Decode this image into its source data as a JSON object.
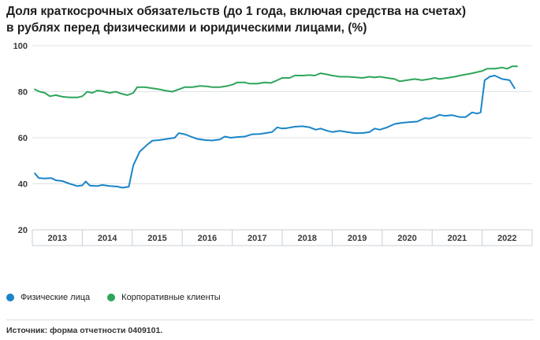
{
  "title_line1": "Доля краткосрочных обязательств (до 1 года, включая средства на счетах)",
  "title_line2": "в рублях перед физическими и юридическими лицами, (%)",
  "source": "Источник: форма отчетности 0409101.",
  "chart_data": {
    "type": "line",
    "title": "Доля краткосрочных обязательств (до 1 года, включая средства на счетах) в рублях перед физическими и юридическими лицами, (%)",
    "ylim": [
      20,
      100
    ],
    "yticks": [
      20,
      40,
      60,
      80,
      100
    ],
    "xlim": [
      2012.95,
      2022.95
    ],
    "years": [
      "2013",
      "2014",
      "2015",
      "2016",
      "2017",
      "2018",
      "2019",
      "2020",
      "2021",
      "2022"
    ],
    "grid": "horizontal",
    "legend_position": "bottom-left",
    "series": [
      {
        "name": "Физические лица",
        "color": "#1a85c8",
        "points": [
          [
            2013.0,
            44.5
          ],
          [
            2013.08,
            42.5
          ],
          [
            2013.2,
            42.3
          ],
          [
            2013.33,
            42.5
          ],
          [
            2013.42,
            41.5
          ],
          [
            2013.55,
            41.2
          ],
          [
            2013.7,
            40.0
          ],
          [
            2013.85,
            39.0
          ],
          [
            2013.95,
            39.3
          ],
          [
            2014.02,
            41.0
          ],
          [
            2014.1,
            39.2
          ],
          [
            2014.25,
            39.0
          ],
          [
            2014.35,
            39.5
          ],
          [
            2014.5,
            39.0
          ],
          [
            2014.65,
            38.8
          ],
          [
            2014.75,
            38.3
          ],
          [
            2014.88,
            38.7
          ],
          [
            2014.97,
            48.0
          ],
          [
            2015.1,
            54.0
          ],
          [
            2015.25,
            57.0
          ],
          [
            2015.35,
            58.7
          ],
          [
            2015.5,
            59.0
          ],
          [
            2015.65,
            59.5
          ],
          [
            2015.8,
            60.0
          ],
          [
            2015.88,
            62.0
          ],
          [
            2016.0,
            61.5
          ],
          [
            2016.12,
            60.5
          ],
          [
            2016.25,
            59.5
          ],
          [
            2016.4,
            59.0
          ],
          [
            2016.55,
            58.8
          ],
          [
            2016.7,
            59.2
          ],
          [
            2016.8,
            60.5
          ],
          [
            2016.92,
            60.0
          ],
          [
            2017.05,
            60.3
          ],
          [
            2017.2,
            60.5
          ],
          [
            2017.35,
            61.5
          ],
          [
            2017.5,
            61.6
          ],
          [
            2017.62,
            62.0
          ],
          [
            2017.75,
            62.5
          ],
          [
            2017.85,
            64.5
          ],
          [
            2017.95,
            64.0
          ],
          [
            2018.05,
            64.2
          ],
          [
            2018.2,
            64.8
          ],
          [
            2018.35,
            65.0
          ],
          [
            2018.5,
            64.5
          ],
          [
            2018.62,
            63.5
          ],
          [
            2018.72,
            64.0
          ],
          [
            2018.85,
            63.0
          ],
          [
            2018.95,
            62.5
          ],
          [
            2019.1,
            63.0
          ],
          [
            2019.25,
            62.5
          ],
          [
            2019.4,
            62.0
          ],
          [
            2019.55,
            62.0
          ],
          [
            2019.7,
            62.5
          ],
          [
            2019.8,
            64.0
          ],
          [
            2019.9,
            63.5
          ],
          [
            2020.05,
            64.5
          ],
          [
            2020.2,
            66.0
          ],
          [
            2020.35,
            66.5
          ],
          [
            2020.5,
            66.8
          ],
          [
            2020.65,
            67.0
          ],
          [
            2020.8,
            68.5
          ],
          [
            2020.9,
            68.3
          ],
          [
            2021.0,
            69.0
          ],
          [
            2021.1,
            70.0
          ],
          [
            2021.2,
            69.5
          ],
          [
            2021.35,
            69.8
          ],
          [
            2021.5,
            69.0
          ],
          [
            2021.62,
            69.0
          ],
          [
            2021.75,
            71.0
          ],
          [
            2021.85,
            70.5
          ],
          [
            2021.92,
            71.0
          ],
          [
            2022.0,
            85.0
          ],
          [
            2022.1,
            86.5
          ],
          [
            2022.2,
            87.0
          ],
          [
            2022.35,
            85.5
          ],
          [
            2022.5,
            85.0
          ],
          [
            2022.6,
            81.5
          ]
        ]
      },
      {
        "name": "Корпоративные клиенты",
        "color": "#2fa55a",
        "points": [
          [
            2013.0,
            81.0
          ],
          [
            2013.1,
            80.0
          ],
          [
            2013.2,
            79.5
          ],
          [
            2013.3,
            78.0
          ],
          [
            2013.42,
            78.5
          ],
          [
            2013.55,
            77.8
          ],
          [
            2013.7,
            77.5
          ],
          [
            2013.85,
            77.5
          ],
          [
            2013.95,
            78.0
          ],
          [
            2014.05,
            80.0
          ],
          [
            2014.15,
            79.5
          ],
          [
            2014.25,
            80.5
          ],
          [
            2014.35,
            80.2
          ],
          [
            2014.5,
            79.5
          ],
          [
            2014.62,
            80.0
          ],
          [
            2014.75,
            79.0
          ],
          [
            2014.85,
            78.5
          ],
          [
            2014.97,
            79.5
          ],
          [
            2015.05,
            82.0
          ],
          [
            2015.2,
            82.0
          ],
          [
            2015.35,
            81.5
          ],
          [
            2015.5,
            81.0
          ],
          [
            2015.6,
            80.5
          ],
          [
            2015.75,
            80.0
          ],
          [
            2015.88,
            81.0
          ],
          [
            2016.0,
            82.0
          ],
          [
            2016.15,
            82.0
          ],
          [
            2016.3,
            82.5
          ],
          [
            2016.45,
            82.3
          ],
          [
            2016.55,
            82.0
          ],
          [
            2016.7,
            82.0
          ],
          [
            2016.85,
            82.5
          ],
          [
            2016.95,
            83.0
          ],
          [
            2017.05,
            84.0
          ],
          [
            2017.2,
            84.0
          ],
          [
            2017.3,
            83.5
          ],
          [
            2017.45,
            83.5
          ],
          [
            2017.6,
            84.0
          ],
          [
            2017.72,
            83.8
          ],
          [
            2017.85,
            85.0
          ],
          [
            2017.95,
            86.0
          ],
          [
            2018.1,
            86.0
          ],
          [
            2018.2,
            87.0
          ],
          [
            2018.35,
            87.0
          ],
          [
            2018.5,
            87.2
          ],
          [
            2018.6,
            87.0
          ],
          [
            2018.72,
            88.0
          ],
          [
            2018.85,
            87.5
          ],
          [
            2018.95,
            87.0
          ],
          [
            2019.1,
            86.5
          ],
          [
            2019.25,
            86.5
          ],
          [
            2019.4,
            86.3
          ],
          [
            2019.55,
            86.0
          ],
          [
            2019.7,
            86.5
          ],
          [
            2019.8,
            86.2
          ],
          [
            2019.9,
            86.5
          ],
          [
            2020.05,
            86.0
          ],
          [
            2020.2,
            85.5
          ],
          [
            2020.3,
            84.5
          ],
          [
            2020.45,
            85.0
          ],
          [
            2020.6,
            85.5
          ],
          [
            2020.75,
            85.0
          ],
          [
            2020.9,
            85.5
          ],
          [
            2021.0,
            86.0
          ],
          [
            2021.1,
            85.5
          ],
          [
            2021.25,
            86.0
          ],
          [
            2021.4,
            86.5
          ],
          [
            2021.5,
            87.0
          ],
          [
            2021.62,
            87.5
          ],
          [
            2021.75,
            88.0
          ],
          [
            2021.85,
            88.5
          ],
          [
            2021.95,
            89.0
          ],
          [
            2022.05,
            90.0
          ],
          [
            2022.2,
            90.0
          ],
          [
            2022.35,
            90.5
          ],
          [
            2022.45,
            90.0
          ],
          [
            2022.55,
            91.0
          ],
          [
            2022.65,
            91.0
          ]
        ]
      }
    ]
  }
}
